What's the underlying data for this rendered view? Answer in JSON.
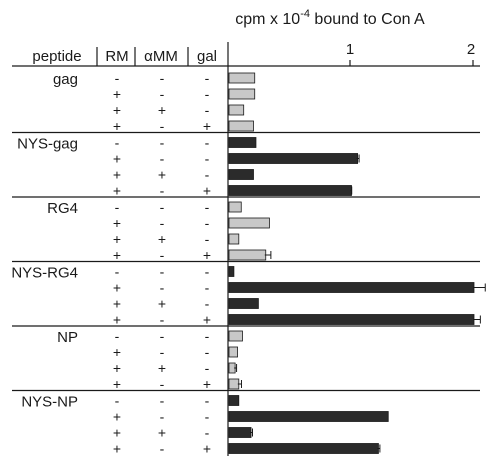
{
  "chart_data": {
    "type": "bar",
    "orientation": "horizontal",
    "title": "cpm x 10",
    "title_exponent": "-4",
    "title_suffix": " bound to Con A",
    "columns": [
      "peptide",
      "RM",
      "αMM",
      "gal"
    ],
    "xlim": [
      0,
      2
    ],
    "x_ticks": [
      "1",
      "2"
    ],
    "grid": false,
    "colors": {
      "light": "#c8c8c8",
      "dark": "#2b2b2b",
      "axis": "#1a1a1a"
    },
    "groups": [
      {
        "label": "gag",
        "shade": "light",
        "rows": [
          {
            "rm": "-",
            "amm": "-",
            "gal": "-",
            "value": 0.21,
            "error": 0
          },
          {
            "rm": "+",
            "amm": "-",
            "gal": "-",
            "value": 0.21,
            "error": 0
          },
          {
            "rm": "+",
            "amm": "+",
            "gal": "-",
            "value": 0.12,
            "error": 0
          },
          {
            "rm": "+",
            "amm": "-",
            "gal": "+",
            "value": 0.2,
            "error": 0
          }
        ]
      },
      {
        "label": "NYS-gag",
        "shade": "dark",
        "rows": [
          {
            "rm": "-",
            "amm": "-",
            "gal": "-",
            "value": 0.22,
            "error": 0
          },
          {
            "rm": "+",
            "amm": "-",
            "gal": "-",
            "value": 1.05,
            "error": 0.02
          },
          {
            "rm": "+",
            "amm": "+",
            "gal": "-",
            "value": 0.2,
            "error": 0
          },
          {
            "rm": "+",
            "amm": "-",
            "gal": "+",
            "value": 1.0,
            "error": 0.01
          }
        ]
      },
      {
        "label": "RG4",
        "shade": "light",
        "rows": [
          {
            "rm": "-",
            "amm": "-",
            "gal": "-",
            "value": 0.1,
            "error": 0
          },
          {
            "rm": "+",
            "amm": "-",
            "gal": "-",
            "value": 0.33,
            "error": 0
          },
          {
            "rm": "+",
            "amm": "+",
            "gal": "-",
            "value": 0.08,
            "error": 0
          },
          {
            "rm": "+",
            "amm": "-",
            "gal": "+",
            "value": 0.3,
            "error": 0.05
          }
        ]
      },
      {
        "label": "NYS-RG4",
        "shade": "dark",
        "rows": [
          {
            "rm": "-",
            "amm": "-",
            "gal": "-",
            "value": 0.04,
            "error": 0
          },
          {
            "rm": "+",
            "amm": "-",
            "gal": "-",
            "value": 2.0,
            "error": 0.1
          },
          {
            "rm": "+",
            "amm": "+",
            "gal": "-",
            "value": 0.24,
            "error": 0
          },
          {
            "rm": "+",
            "amm": "-",
            "gal": "+",
            "value": 2.0,
            "error": 0.06
          }
        ]
      },
      {
        "label": "NP",
        "shade": "light",
        "rows": [
          {
            "rm": "-",
            "amm": "-",
            "gal": "-",
            "value": 0.11,
            "error": 0
          },
          {
            "rm": "+",
            "amm": "-",
            "gal": "-",
            "value": 0.07,
            "error": 0
          },
          {
            "rm": "+",
            "amm": "+",
            "gal": "-",
            "value": 0.05,
            "error": 0.02
          },
          {
            "rm": "+",
            "amm": "-",
            "gal": "+",
            "value": 0.08,
            "error": 0.03
          }
        ]
      },
      {
        "label": "NYS-NP",
        "shade": "dark",
        "rows": [
          {
            "rm": "-",
            "amm": "-",
            "gal": "-",
            "value": 0.08,
            "error": 0
          },
          {
            "rm": "+",
            "amm": "-",
            "gal": "-",
            "value": 1.3,
            "error": 0
          },
          {
            "rm": "+",
            "amm": "+",
            "gal": "-",
            "value": 0.18,
            "error": 0.02
          },
          {
            "rm": "+",
            "amm": "-",
            "gal": "+",
            "value": 1.22,
            "error": 0.02
          }
        ]
      }
    ]
  }
}
